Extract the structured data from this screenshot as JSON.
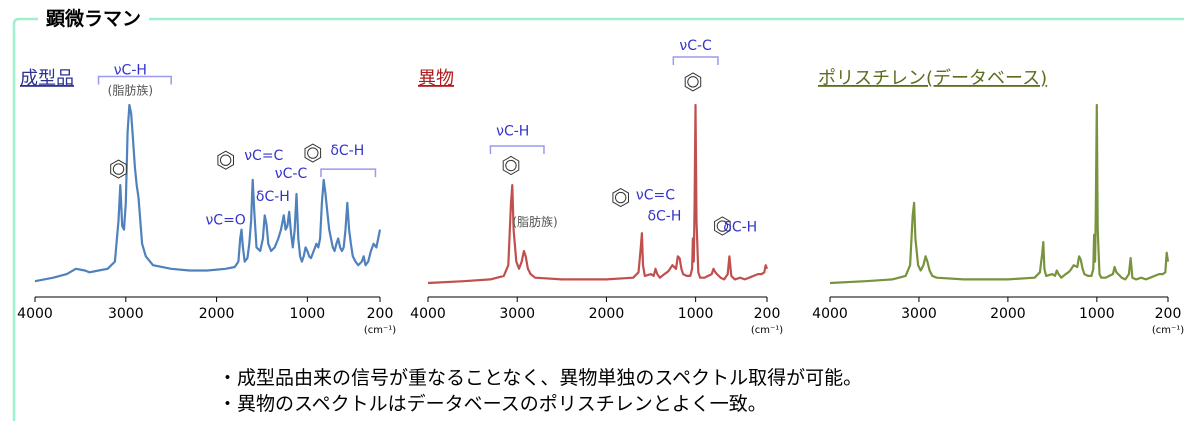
{
  "section_title": "顕微ラマン",
  "summary": [
    "・成型品由来の信号が重なることなく、異物単独のスペクトル取得が可能。",
    "・異物のスペクトルはデータベースのポリスチレンとよく一致。"
  ],
  "colors": {
    "frame": "#9ff0cf",
    "annotation": "#3333cc",
    "bracket": "#9a9aee",
    "gray_note": "#555555"
  },
  "chart_data": [
    {
      "type": "line",
      "title": "成型品",
      "title_color": "#2e3192",
      "line_color": "#4f81bd",
      "xlabel": "(cm⁻¹)",
      "xlim": [
        4000,
        200
      ],
      "ylim": [
        0,
        1
      ],
      "x_ticks": [
        4000,
        3000,
        2000,
        1000,
        200
      ],
      "x_tick_labels": [
        "4000",
        "3000",
        "2000",
        "1000",
        "200"
      ],
      "series": [
        {
          "x": [
            4000,
            3800,
            3650,
            3550,
            3450,
            3400,
            3300,
            3200,
            3120,
            3080,
            3060,
            3040,
            3020,
            3000,
            2980,
            2960,
            2940,
            2920,
            2900,
            2880,
            2860,
            2840,
            2820,
            2780,
            2700,
            2500,
            2300,
            2100,
            1900,
            1800,
            1760,
            1740,
            1725,
            1710,
            1690,
            1660,
            1640,
            1620,
            1602,
            1585,
            1560,
            1520,
            1490,
            1470,
            1450,
            1430,
            1400,
            1360,
            1320,
            1290,
            1260,
            1240,
            1220,
            1200,
            1180,
            1160,
            1140,
            1120,
            1100,
            1080,
            1060,
            1040,
            1020,
            1000,
            980,
            960,
            930,
            900,
            880,
            860,
            840,
            820,
            800,
            780,
            760,
            740,
            720,
            700,
            680,
            660,
            640,
            620,
            600,
            580,
            560,
            540,
            520,
            500,
            470,
            440,
            400,
            380,
            360,
            330,
            300,
            270,
            240,
            220,
            200
          ],
          "y": [
            0.01,
            0.03,
            0.05,
            0.08,
            0.07,
            0.06,
            0.07,
            0.08,
            0.12,
            0.35,
            0.55,
            0.32,
            0.3,
            0.45,
            0.85,
            1.0,
            0.95,
            0.8,
            0.65,
            0.55,
            0.48,
            0.35,
            0.22,
            0.15,
            0.1,
            0.08,
            0.07,
            0.07,
            0.08,
            0.09,
            0.12,
            0.25,
            0.3,
            0.2,
            0.12,
            0.14,
            0.22,
            0.35,
            0.58,
            0.4,
            0.2,
            0.18,
            0.25,
            0.38,
            0.33,
            0.22,
            0.18,
            0.2,
            0.25,
            0.3,
            0.38,
            0.3,
            0.32,
            0.4,
            0.28,
            0.2,
            0.3,
            0.5,
            0.25,
            0.15,
            0.12,
            0.15,
            0.2,
            0.18,
            0.15,
            0.14,
            0.18,
            0.22,
            0.2,
            0.25,
            0.45,
            0.58,
            0.5,
            0.4,
            0.3,
            0.25,
            0.2,
            0.18,
            0.22,
            0.25,
            0.2,
            0.18,
            0.2,
            0.3,
            0.45,
            0.3,
            0.22,
            0.15,
            0.12,
            0.1,
            0.12,
            0.15,
            0.1,
            0.12,
            0.18,
            0.22,
            0.2,
            0.25,
            0.3
          ]
        }
      ],
      "annotations": [
        {
          "text": "νC-H",
          "x": 2950,
          "y": 1.17
        },
        {
          "text": "(脂肪族)",
          "x": 2950,
          "y": 1.06,
          "color": "gray"
        },
        {
          "text": "νC=C",
          "x": 1480,
          "y": 0.69
        },
        {
          "text": "δC-H",
          "x": 1380,
          "y": 0.46
        },
        {
          "text": "νC=O",
          "x": 1900,
          "y": 0.33
        },
        {
          "text": "νC-C",
          "x": 1180,
          "y": 0.59
        },
        {
          "text": "δC-H",
          "x": 560,
          "y": 0.72
        }
      ],
      "benzene_marks": [
        {
          "x": 3080,
          "y": 0.64
        },
        {
          "x": 1900,
          "y": 0.69
        },
        {
          "x": 940,
          "y": 0.73
        }
      ],
      "brackets": [
        {
          "x1": 3300,
          "x2": 2500,
          "y": 1.16
        },
        {
          "x1": 850,
          "x2": 250,
          "y": 0.64
        }
      ]
    },
    {
      "type": "line",
      "title": "異物",
      "title_color": "#b01c1c",
      "line_color": "#c0504d",
      "xlabel": "(cm⁻¹)",
      "xlim": [
        4000,
        200
      ],
      "ylim": [
        0,
        1
      ],
      "x_ticks": [
        4000,
        3000,
        2000,
        1000,
        200
      ],
      "x_tick_labels": [
        "4000",
        "3000",
        "2000",
        "1000",
        "200"
      ],
      "series": [
        {
          "x": [
            4000,
            3600,
            3300,
            3150,
            3100,
            3070,
            3055,
            3040,
            3010,
            2980,
            2950,
            2925,
            2905,
            2880,
            2850,
            2800,
            2500,
            2000,
            1700,
            1640,
            1615,
            1602,
            1590,
            1570,
            1500,
            1470,
            1450,
            1430,
            1400,
            1350,
            1320,
            1300,
            1260,
            1220,
            1200,
            1180,
            1160,
            1140,
            1100,
            1060,
            1040,
            1031,
            1020,
            1012,
            1001,
            990,
            970,
            950,
            900,
            860,
            820,
            800,
            780,
            760,
            740,
            720,
            680,
            640,
            621,
            600,
            560,
            500,
            450,
            400,
            350,
            300,
            260,
            230,
            215,
            200
          ],
          "y": [
            0.0,
            0.01,
            0.02,
            0.04,
            0.1,
            0.45,
            0.55,
            0.3,
            0.12,
            0.08,
            0.12,
            0.18,
            0.15,
            0.08,
            0.05,
            0.03,
            0.02,
            0.02,
            0.03,
            0.06,
            0.2,
            0.28,
            0.1,
            0.04,
            0.05,
            0.04,
            0.08,
            0.05,
            0.03,
            0.05,
            0.06,
            0.07,
            0.1,
            0.08,
            0.15,
            0.14,
            0.08,
            0.05,
            0.04,
            0.04,
            0.08,
            0.25,
            0.12,
            0.45,
            1.0,
            0.35,
            0.06,
            0.03,
            0.03,
            0.04,
            0.05,
            0.08,
            0.06,
            0.05,
            0.04,
            0.03,
            0.02,
            0.05,
            0.15,
            0.04,
            0.02,
            0.03,
            0.02,
            0.03,
            0.04,
            0.05,
            0.05,
            0.06,
            0.1,
            0.08
          ]
        }
      ],
      "annotations": [
        {
          "text": "νC-C",
          "x": 1000,
          "y": 1.31
        },
        {
          "text": "νC-H",
          "x": 3050,
          "y": 0.83
        },
        {
          "text": "νC=C",
          "x": 1450,
          "y": 0.47
        },
        {
          "text": "δC-H",
          "x": 1350,
          "y": 0.35
        },
        {
          "text": "(脂肪族)",
          "x": 2800,
          "y": 0.32,
          "color": "gray"
        },
        {
          "text": "δC-H",
          "x": 500,
          "y": 0.29
        }
      ],
      "benzene_marks": [
        {
          "x": 1030,
          "y": 1.13
        },
        {
          "x": 3070,
          "y": 0.66
        },
        {
          "x": 1840,
          "y": 0.48
        },
        {
          "x": 700,
          "y": 0.32
        }
      ],
      "brackets": [
        {
          "x1": 1250,
          "x2": 750,
          "y": 1.27
        },
        {
          "x1": 3300,
          "x2": 2700,
          "y": 0.77
        }
      ]
    },
    {
      "type": "line",
      "title": "ポリスチレン(データベース)",
      "title_color": "#5a6e1e",
      "line_color": "#77933c",
      "xlabel": "(cm⁻¹)",
      "xlim": [
        4000,
        200
      ],
      "ylim": [
        0,
        1
      ],
      "x_ticks": [
        4000,
        3000,
        2000,
        1000,
        200
      ],
      "x_tick_labels": [
        "4000",
        "3000",
        "2000",
        "1000",
        "200"
      ],
      "series": [
        {
          "x": [
            4000,
            3600,
            3300,
            3150,
            3100,
            3070,
            3055,
            3040,
            3010,
            2980,
            2950,
            2925,
            2905,
            2880,
            2850,
            2800,
            2500,
            2000,
            1700,
            1640,
            1615,
            1602,
            1590,
            1570,
            1500,
            1470,
            1450,
            1430,
            1400,
            1350,
            1320,
            1300,
            1260,
            1220,
            1200,
            1180,
            1160,
            1140,
            1100,
            1060,
            1040,
            1031,
            1020,
            1012,
            1001,
            990,
            970,
            950,
            900,
            860,
            820,
            800,
            780,
            760,
            740,
            720,
            680,
            640,
            621,
            600,
            560,
            500,
            450,
            400,
            350,
            300,
            260,
            230,
            215,
            200
          ],
          "y": [
            0.0,
            0.01,
            0.02,
            0.04,
            0.1,
            0.38,
            0.45,
            0.25,
            0.1,
            0.07,
            0.1,
            0.15,
            0.12,
            0.07,
            0.04,
            0.03,
            0.02,
            0.02,
            0.03,
            0.06,
            0.16,
            0.23,
            0.08,
            0.04,
            0.05,
            0.04,
            0.07,
            0.05,
            0.03,
            0.05,
            0.06,
            0.07,
            0.1,
            0.09,
            0.15,
            0.13,
            0.08,
            0.05,
            0.04,
            0.04,
            0.08,
            0.27,
            0.12,
            0.4,
            1.0,
            0.3,
            0.05,
            0.03,
            0.03,
            0.04,
            0.05,
            0.09,
            0.06,
            0.05,
            0.04,
            0.03,
            0.02,
            0.05,
            0.14,
            0.03,
            0.02,
            0.03,
            0.02,
            0.03,
            0.04,
            0.05,
            0.05,
            0.06,
            0.17,
            0.12
          ]
        }
      ],
      "annotations": [],
      "benzene_marks": [],
      "brackets": []
    }
  ]
}
